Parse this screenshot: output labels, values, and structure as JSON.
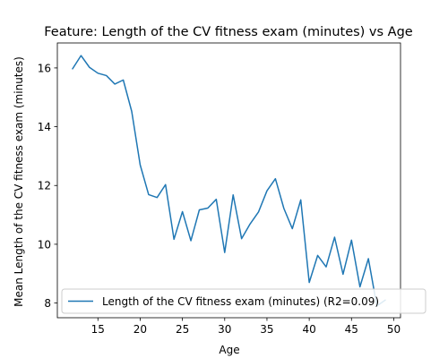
{
  "chart_data": {
    "type": "line",
    "title": "Feature: Length of the CV fitness exam (minutes) vs Age",
    "xlabel": "Age",
    "ylabel": "Mean Length of the CV fitness exam (minutes)",
    "xlim": [
      10.2,
      50.8
    ],
    "ylim": [
      7.5,
      16.85
    ],
    "xticks": [
      15,
      20,
      25,
      30,
      35,
      40,
      45,
      50
    ],
    "yticks": [
      8,
      10,
      12,
      14,
      16
    ],
    "grid": false,
    "legend_position": "lower-left",
    "series": [
      {
        "name": "Length of the CV fitness exam (minutes) (R2=0.09)",
        "color": "#1f77b4",
        "x": [
          12,
          13,
          14,
          15,
          16,
          17,
          18,
          19,
          20,
          21,
          22,
          23,
          24,
          25,
          26,
          27,
          28,
          29,
          30,
          31,
          32,
          33,
          34,
          35,
          36,
          37,
          38,
          39,
          40,
          41,
          42,
          43,
          44,
          45,
          46,
          47,
          48,
          49
        ],
        "y": [
          15.97,
          16.42,
          16.02,
          15.82,
          15.74,
          15.45,
          15.59,
          14.52,
          12.7,
          11.69,
          11.59,
          12.03,
          10.17,
          11.11,
          10.12,
          11.17,
          11.23,
          11.53,
          9.72,
          11.68,
          10.19,
          10.69,
          11.1,
          11.82,
          12.23,
          11.22,
          10.53,
          11.51,
          8.7,
          9.62,
          9.23,
          10.24,
          8.98,
          10.14,
          8.55,
          9.51,
          7.9,
          8.1
        ]
      }
    ]
  }
}
